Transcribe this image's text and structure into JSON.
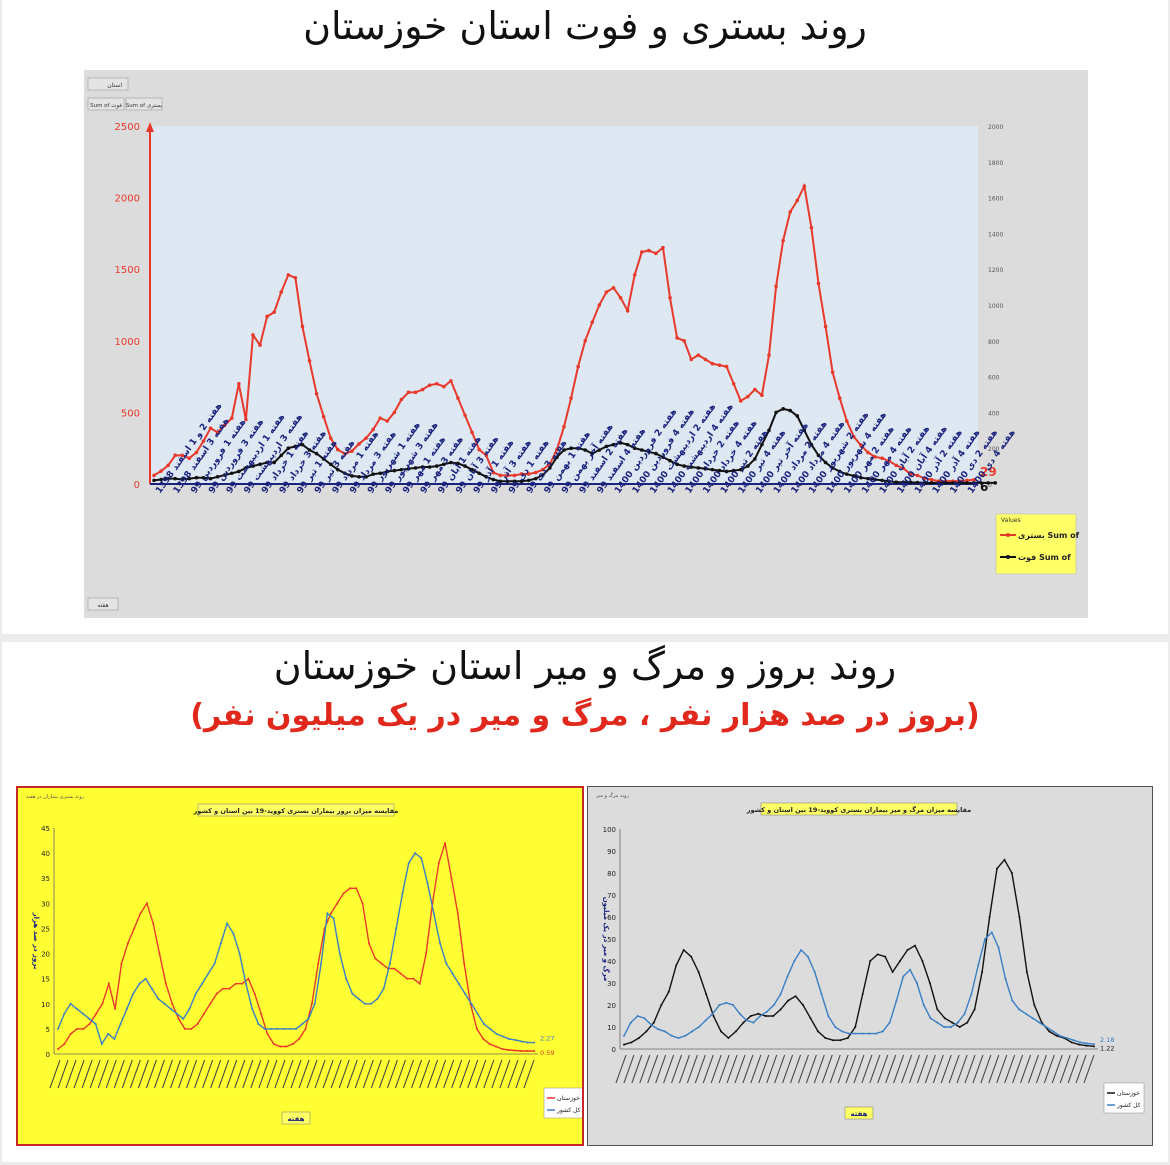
{
  "titles": {
    "top": "روند بستری و فوت استان خوزستان",
    "bottom": "روند بروز و مرگ و میر استان خوزستان",
    "bottom_sub": "(بروز در صد هزار نفر ، مرگ و میر در یک میلیون نفر)"
  },
  "colors": {
    "red": "#e8392b",
    "black": "#111111",
    "blue": "#3a7fc4",
    "axis_blue": "#1a237e"
  },
  "chart_data": [
    {
      "type": "line",
      "filter_label": "استان",
      "field_buttons": [
        "Sum of فوت",
        "Sum of بستری"
      ],
      "bottom_button": "هفته",
      "legend_title": "Values",
      "legend": [
        "بستری Sum of",
        "فوت Sum of"
      ],
      "ylim_left": [
        0,
        2500
      ],
      "yticks_left": [
        0,
        500,
        1000,
        1500,
        2000,
        2500
      ],
      "ylim_right": [
        0,
        2000
      ],
      "yticks_right": [
        0,
        200,
        400,
        600,
        800,
        1000,
        1200,
        1400,
        1600,
        1800,
        2000
      ],
      "x_tick_labels": [
        "هفته 2 و 1 اسفند 1398",
        "هفته 3 اسفند 1398",
        "هفته 1 فروردین 99",
        "هفته 3 فروردین 99",
        "هفته 1 اردیبهشت 99",
        "هفته 3 اردیبهشت 99",
        "هفته 1 خرداد 99",
        "هفته 3 خرداد 99",
        "هفته 1 تیر 99",
        "هفته 3 تیر 99",
        "هفته 1 مرداد 99",
        "هفته 3 مرداد 99",
        "هفته 1 شهریور 99",
        "هفته 3 شهریور 99",
        "هفته 1 مهر 99",
        "هفته 3 مهر 99",
        "هفته 1 آبان 99",
        "هفته 3 آبان 99",
        "هفته 1 آذر 99",
        "هفته 3 آذر 99",
        "هفته 1 دی 99",
        "هفته 3 دی 99",
        "هفته 1 بهمن 99",
        "هفته آخر بهمن 99",
        "هفته 2 اسفند 99",
        "هفته 4 اسفند 99",
        "هفته 2 فروردین 1400",
        "هفته 4 فروردین 1400",
        "هفته 2 اردیبهشت 1400",
        "هفته 4 اردیبهشت 1400",
        "هفته 2 خرداد 1400",
        "هفته 4 خرداد 1400",
        "هفته 2 تیر 1400",
        "هفته 4 تیر 1400",
        "هفته آخر تیر 1400",
        "هفته 2 مرداد 1400",
        "هفته 4 مرداد 1400",
        "هفته 2 شهریور 1400",
        "هفته 4 شهریور 1400",
        "هفته 2 مهر 1400",
        "هفته 4 مهر 1400",
        "هفته 2 آبان 1400",
        "هفته 4 آبان 1400",
        "هفته 2 آذر 1400",
        "هفته 4 آذر 1400",
        "هفته 2 دی 1400",
        "هفته 4 دی 1400"
      ],
      "series": [
        {
          "name": "بستری Sum of",
          "axis": "left",
          "end_label": "29",
          "values": [
            60,
            90,
            130,
            200,
            200,
            180,
            220,
            300,
            390,
            360,
            410,
            460,
            700,
            450,
            1040,
            970,
            1170,
            1200,
            1340,
            1460,
            1440,
            1100,
            860,
            630,
            470,
            320,
            240,
            210,
            230,
            280,
            320,
            380,
            460,
            440,
            500,
            590,
            640,
            640,
            660,
            690,
            700,
            680,
            720,
            600,
            480,
            360,
            240,
            200,
            80,
            60,
            60,
            60,
            70,
            70,
            80,
            100,
            140,
            240,
            400,
            600,
            820,
            1000,
            1130,
            1250,
            1340,
            1370,
            1300,
            1210,
            1460,
            1620,
            1630,
            1610,
            1650,
            1300,
            1020,
            1000,
            870,
            900,
            870,
            840,
            830,
            820,
            700,
            580,
            610,
            660,
            620,
            900,
            1380,
            1700,
            1900,
            1980,
            2080,
            1790,
            1400,
            1100,
            780,
            600,
            440,
            330,
            270,
            220,
            190,
            180,
            160,
            130,
            110,
            70,
            60,
            40,
            30,
            20,
            20,
            20,
            20,
            25,
            29
          ]
        },
        {
          "name": "فوت Sum of",
          "axis": "right",
          "end_label": "6",
          "values": [
            20,
            25,
            30,
            30,
            25,
            30,
            35,
            35,
            30,
            40,
            50,
            60,
            70,
            90,
            100,
            110,
            120,
            120,
            160,
            200,
            210,
            220,
            190,
            170,
            140,
            110,
            80,
            60,
            45,
            40,
            40,
            55,
            60,
            70,
            75,
            80,
            85,
            90,
            95,
            95,
            100,
            110,
            120,
            115,
            100,
            80,
            60,
            40,
            25,
            15,
            15,
            15,
            15,
            20,
            30,
            50,
            90,
            150,
            190,
            200,
            200,
            190,
            170,
            190,
            210,
            220,
            230,
            220,
            200,
            190,
            180,
            170,
            150,
            130,
            110,
            100,
            95,
            90,
            85,
            80,
            75,
            70,
            75,
            80,
            100,
            140,
            220,
            300,
            400,
            420,
            410,
            380,
            300,
            220,
            160,
            120,
            90,
            70,
            55,
            45,
            35,
            30,
            25,
            20,
            15,
            10,
            10,
            10,
            8,
            6,
            6,
            6,
            6,
            6,
            6,
            6,
            6,
            6,
            6,
            6
          ]
        }
      ]
    },
    {
      "type": "line",
      "title": "مقایسه میزان بروز بیماران بستری کووید-19 بین استان و کشور",
      "top_label": "روند بستری بیماران در هفته",
      "ylabel": "بروز در صد هزار",
      "xlabel": "هفته",
      "legend": [
        "خوزستان",
        "کل کشور"
      ],
      "ylim": [
        0,
        45
      ],
      "yticks": [
        0,
        5,
        10,
        15,
        20,
        25,
        30,
        35,
        40,
        45
      ],
      "series": [
        {
          "name": "خوزستان",
          "end_label": "0.59",
          "values": [
            1,
            2,
            4,
            5,
            5,
            6,
            8,
            10,
            14,
            9,
            18,
            22,
            25,
            28,
            30,
            26,
            20,
            14,
            10,
            7,
            5,
            5,
            6,
            8,
            10,
            12,
            13,
            13,
            14,
            14,
            15,
            12,
            8,
            4,
            2,
            1.5,
            1.5,
            2,
            3,
            5,
            10,
            18,
            25,
            28,
            30,
            32,
            33,
            33,
            30,
            22,
            19,
            18,
            17,
            17,
            16,
            15,
            15,
            14,
            20,
            30,
            38,
            42,
            35,
            28,
            18,
            10,
            5,
            3,
            2,
            1.5,
            1,
            0.8,
            0.7,
            0.6,
            0.59,
            0.59
          ]
        },
        {
          "name": "کل کشور",
          "end_label": "2.27",
          "values": [
            5,
            8,
            10,
            9,
            8,
            7,
            6,
            2,
            4,
            3,
            6,
            9,
            12,
            14,
            15,
            13,
            11,
            10,
            9,
            8,
            7,
            9,
            12,
            14,
            16,
            18,
            22,
            26,
            24,
            20,
            14,
            9,
            6,
            5,
            5,
            5,
            5,
            5,
            5,
            6,
            7,
            10,
            18,
            28,
            27,
            20,
            15,
            12,
            11,
            10,
            10,
            11,
            13,
            18,
            25,
            32,
            38,
            40,
            39,
            34,
            28,
            22,
            18,
            16,
            14,
            12,
            10,
            8,
            6,
            5,
            4,
            3.5,
            3,
            2.8,
            2.5,
            2.3,
            2.27
          ]
        }
      ]
    },
    {
      "type": "line",
      "title": "مقایسه میزان مرگ و میر بیماران بستری کووید-19 بین استان و کشور",
      "top_label": "روند مرگ و میر",
      "ylabel": "مرگ و میر در یک میلیون",
      "xlabel": "هفته",
      "legend": [
        "خوزستان",
        "کل کشور"
      ],
      "ylim": [
        0,
        100
      ],
      "yticks": [
        0,
        10,
        20,
        30,
        40,
        50,
        60,
        70,
        80,
        90,
        100
      ],
      "series": [
        {
          "name": "خوزستان",
          "end_label": "1.22",
          "values": [
            2,
            3,
            5,
            8,
            12,
            20,
            26,
            38,
            45,
            42,
            35,
            25,
            15,
            8,
            5,
            8,
            12,
            15,
            16,
            15,
            15,
            18,
            22,
            24,
            20,
            14,
            8,
            5,
            4,
            4,
            5,
            10,
            25,
            40,
            43,
            42,
            35,
            40,
            45,
            47,
            40,
            30,
            18,
            14,
            12,
            10,
            12,
            18,
            35,
            60,
            82,
            86,
            80,
            60,
            35,
            20,
            12,
            8,
            6,
            5,
            3,
            2,
            1.5,
            1.22
          ]
        },
        {
          "name": "کل کشور",
          "end_label": "2.18",
          "values": [
            6,
            12,
            15,
            14,
            11,
            9,
            8,
            6,
            5,
            6,
            8,
            10,
            13,
            16,
            20,
            21,
            20,
            16,
            13,
            12,
            15,
            17,
            20,
            25,
            33,
            40,
            45,
            42,
            35,
            25,
            15,
            10,
            8,
            7,
            7,
            7,
            7,
            7,
            8,
            12,
            22,
            33,
            36,
            30,
            20,
            14,
            12,
            10,
            10,
            12,
            16,
            25,
            38,
            50,
            53,
            46,
            32,
            22,
            18,
            16,
            14,
            12,
            10,
            8,
            6,
            5,
            4,
            3,
            2.5,
            2.18
          ]
        }
      ]
    }
  ]
}
